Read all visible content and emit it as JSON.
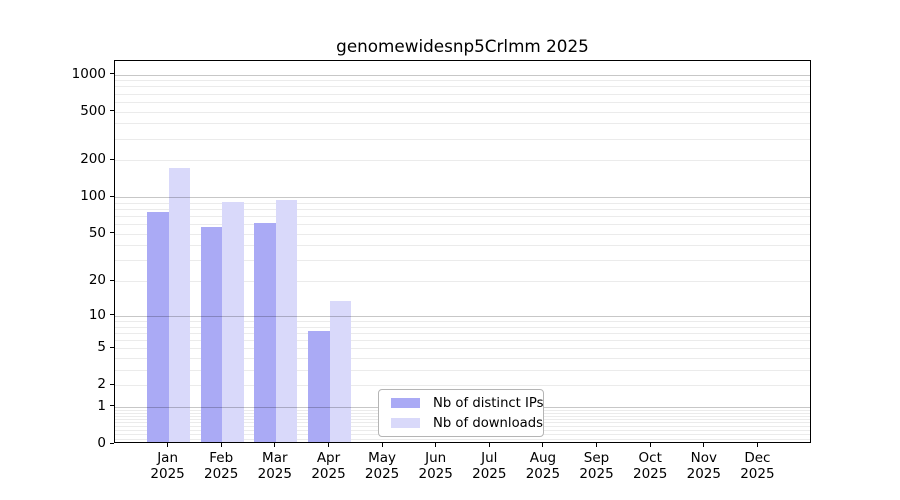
{
  "title": "genomewidesnp5Crlmm 2025",
  "chart_data": {
    "type": "bar",
    "title": "genomewidesnp5Crlmm 2025",
    "categories": [
      "Jan",
      "Feb",
      "Mar",
      "Apr",
      "May",
      "Jun",
      "Jul",
      "Aug",
      "Sep",
      "Oct",
      "Nov",
      "Dec"
    ],
    "category_year": "2025",
    "series": [
      {
        "name": "Nb of distinct IPs",
        "color": "#aaaaf5",
        "values": [
          73,
          55,
          59,
          7,
          0,
          0,
          0,
          0,
          0,
          0,
          0,
          0
        ]
      },
      {
        "name": "Nb of downloads",
        "color": "#d9d9fa",
        "values": [
          167,
          88,
          91,
          13,
          0,
          0,
          0,
          0,
          0,
          0,
          0,
          0
        ]
      }
    ],
    "y_scale": "log1p",
    "y_ticks": [
      0,
      1,
      2,
      5,
      10,
      20,
      50,
      100,
      200,
      500,
      1000
    ],
    "ylim": [
      0,
      1288
    ],
    "grid": true,
    "legend_position": "inside-bottom-center",
    "colors": {
      "axis": "#000000",
      "major_grid": "#c8c8c8",
      "minor_grid": "#ebebeb",
      "background": "#ffffff",
      "text": "#000000"
    }
  }
}
